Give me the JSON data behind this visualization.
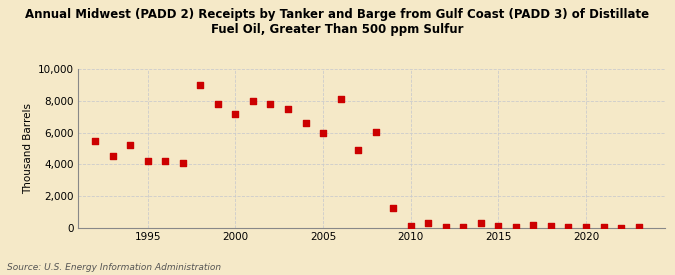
{
  "title": "Annual Midwest (PADD 2) Receipts by Tanker and Barge from Gulf Coast (PADD 3) of Distillate\nFuel Oil, Greater Than 500 ppm Sulfur",
  "ylabel": "Thousand Barrels",
  "source": "Source: U.S. Energy Information Administration",
  "background_color": "#f5e9c8",
  "marker_color": "#cc0000",
  "grid_color": "#cccccc",
  "xlim": [
    1991.0,
    2024.5
  ],
  "ylim": [
    0,
    10000
  ],
  "yticks": [
    0,
    2000,
    4000,
    6000,
    8000,
    10000
  ],
  "ytick_labels": [
    "0",
    "2,000",
    "4,000",
    "6,000",
    "8,000",
    "10,000"
  ],
  "xticks": [
    1995,
    2000,
    2005,
    2010,
    2015,
    2020
  ],
  "data": {
    "1992": 5500,
    "1993": 4500,
    "1994": 5250,
    "1995": 4200,
    "1996": 4200,
    "1997": 4100,
    "1998": 9000,
    "1999": 7800,
    "2000": 7150,
    "2001": 8000,
    "2002": 7800,
    "2003": 7500,
    "2004": 6600,
    "2005": 6000,
    "2006": 8100,
    "2007": 4900,
    "2008": 6050,
    "2009": 1300,
    "2010": 150,
    "2011": 300,
    "2012": 75,
    "2013": 100,
    "2014": 350,
    "2015": 150,
    "2016": 100,
    "2017": 200,
    "2018": 125,
    "2019": 100,
    "2020": 75,
    "2021": 50,
    "2022": 25,
    "2023": 100
  }
}
